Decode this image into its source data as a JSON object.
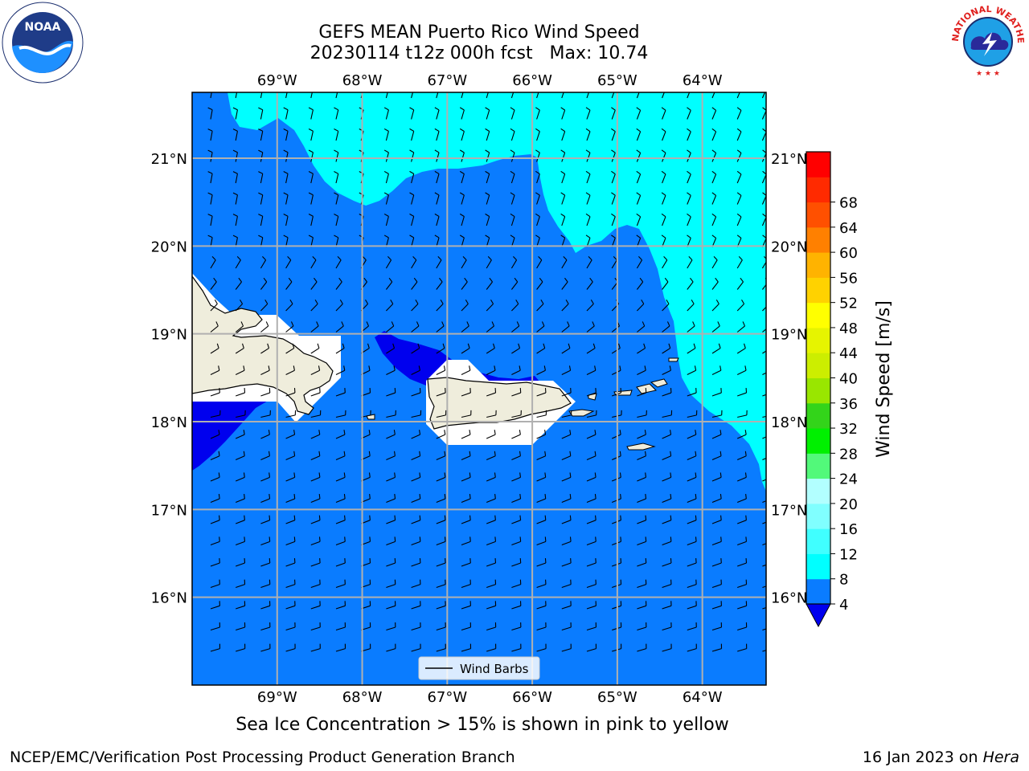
{
  "title": {
    "line1": "GEFS MEAN Puerto Rico Wind Speed",
    "line2": "20230114 t12z 000h fcst   Max: 10.74"
  },
  "logos": {
    "left": {
      "icon": "noaa-logo",
      "text": "NOAA"
    },
    "right": {
      "icon": "national-weather-service-logo",
      "text": "NATIONAL WEATHER SERVICE"
    }
  },
  "map": {
    "lon_labels": [
      "69°W",
      "68°W",
      "67°W",
      "66°W",
      "65°W",
      "64°W"
    ],
    "lat_labels": [
      "21°N",
      "20°N",
      "19°N",
      "18°N",
      "17°N",
      "16°N"
    ],
    "lon_range": [
      -70.0,
      -63.25
    ],
    "lat_range": [
      15.0,
      21.75
    ],
    "legend_label": "Wind Barbs",
    "colors": {
      "ocean_main": "#0a7cff",
      "low_wind": "#0000ee",
      "cyan": "#00ffff",
      "land": "#efeddc",
      "masked": "#ffffff",
      "grid": "#b0b0b0"
    }
  },
  "colorbar": {
    "label": "Wind Speed [m/s]",
    "ticks": [
      "4",
      "8",
      "12",
      "16",
      "20",
      "24",
      "28",
      "32",
      "36",
      "40",
      "44",
      "48",
      "52",
      "56",
      "60",
      "64",
      "68"
    ],
    "colors": [
      "#0a7cff",
      "#00ffff",
      "#40ffff",
      "#80ffff",
      "#b2ffff",
      "#52f97a",
      "#00f000",
      "#33d41a",
      "#99e600",
      "#ccee00",
      "#e6f400",
      "#ffff00",
      "#ffd200",
      "#ffb300",
      "#ff8000",
      "#ff5000",
      "#ff2a00",
      "#ff0000"
    ],
    "under_color": "#0000ee"
  },
  "footer": {
    "note": "Sea Ice Concentration > 15% is shown in pink to yellow",
    "credit_left": "NCEP/EMC/Verification Post Processing Product Generation Branch",
    "credit_right_date": "16 Jan 2023 on ",
    "credit_right_host": "Hera"
  }
}
